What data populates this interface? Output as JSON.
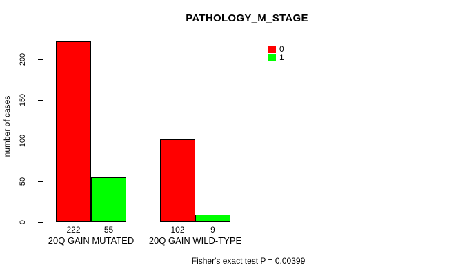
{
  "chart_data": {
    "type": "bar",
    "title": "PATHOLOGY_M_STAGE",
    "ylabel": "number of cases",
    "xlabel": "",
    "categories": [
      "20Q GAIN MUTATED",
      "20Q GAIN WILD-TYPE"
    ],
    "series": [
      {
        "name": "0",
        "color": "#ff0000",
        "values": [
          222,
          102
        ]
      },
      {
        "name": "1",
        "color": "#00ff00",
        "values": [
          55,
          9
        ]
      }
    ],
    "bar_value_labels": [
      [
        "222",
        "55"
      ],
      [
        "102",
        "9"
      ]
    ],
    "yticks": [
      0,
      50,
      100,
      150,
      200
    ],
    "ylim": [
      0,
      230
    ],
    "grid": false,
    "legend_position": "top-right",
    "annotation": "Fisher's exact test P = 0.00399"
  }
}
